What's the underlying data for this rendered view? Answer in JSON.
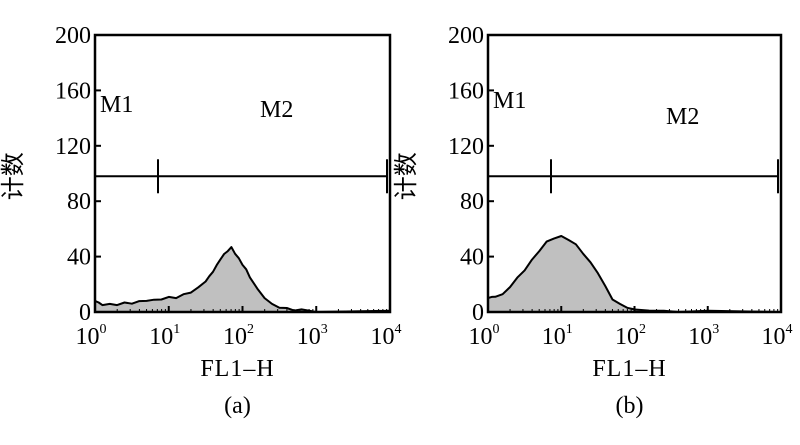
{
  "figure": {
    "panels": [
      {
        "caption": "(a)",
        "xlabel": "FL1–H",
        "ylabel": "计数",
        "markers": [
          {
            "label": "M1",
            "range": [
              0,
              0
            ]
          },
          {
            "label": "M2",
            "range": [
              0.9,
              4
            ]
          }
        ]
      },
      {
        "caption": "(b)",
        "xlabel": "FL1–H",
        "ylabel": "计数",
        "markers": [
          {
            "label": "M1",
            "range": [
              0,
              0
            ]
          },
          {
            "label": "M2",
            "range": [
              0.87,
              4
            ]
          }
        ]
      }
    ]
  },
  "chart_data": [
    {
      "type": "area",
      "title": "",
      "caption": "(a)",
      "xlabel": "FL1–H",
      "ylabel": "计数",
      "xscale": "log",
      "xlim": [
        1,
        10000
      ],
      "ylim": [
        0,
        200
      ],
      "yticks": [
        0,
        40,
        80,
        120,
        160,
        200
      ],
      "xticks": [
        {
          "base": "10",
          "exp": "0"
        },
        {
          "base": "10",
          "exp": "1"
        },
        {
          "base": "10",
          "exp": "2"
        },
        {
          "base": "10",
          "exp": "3"
        },
        {
          "base": "10",
          "exp": "4"
        }
      ],
      "marker_level": 98,
      "fill": "#c0c0c0",
      "x_log10": [
        0,
        0.05,
        0.1,
        0.2,
        0.3,
        0.4,
        0.5,
        0.6,
        0.7,
        0.8,
        0.9,
        1.0,
        1.1,
        1.2,
        1.3,
        1.4,
        1.5,
        1.55,
        1.6,
        1.65,
        1.7,
        1.75,
        1.8,
        1.85,
        1.9,
        1.95,
        2.0,
        2.05,
        2.1,
        2.2,
        2.3,
        2.4,
        2.5,
        2.6,
        2.7,
        2.8,
        3.0,
        4.0
      ],
      "counts": [
        8,
        6,
        5,
        5,
        5,
        6,
        6,
        7,
        8,
        8,
        9,
        10,
        10,
        12,
        14,
        17,
        22,
        25,
        29,
        33,
        38,
        41,
        44,
        46,
        42,
        38,
        34,
        30,
        25,
        16,
        10,
        5,
        3,
        2,
        1,
        1,
        0,
        0
      ]
    },
    {
      "type": "area",
      "title": "",
      "caption": "(b)",
      "xlabel": "FL1–H",
      "ylabel": "计数",
      "xscale": "log",
      "xlim": [
        1,
        10000
      ],
      "ylim": [
        0,
        200
      ],
      "yticks": [
        0,
        40,
        80,
        120,
        160,
        200
      ],
      "xticks": [
        {
          "base": "10",
          "exp": "0"
        },
        {
          "base": "10",
          "exp": "1"
        },
        {
          "base": "10",
          "exp": "2"
        },
        {
          "base": "10",
          "exp": "3"
        },
        {
          "base": "10",
          "exp": "4"
        }
      ],
      "marker_level": 98,
      "fill": "#c0c0c0",
      "x_log10": [
        0,
        0.05,
        0.1,
        0.2,
        0.3,
        0.4,
        0.5,
        0.6,
        0.7,
        0.8,
        0.9,
        1.0,
        1.1,
        1.2,
        1.3,
        1.4,
        1.5,
        1.6,
        1.7,
        1.8,
        1.9,
        2.0,
        2.2,
        2.4,
        2.6,
        3.0,
        4.0
      ],
      "counts": [
        10,
        10,
        11,
        12,
        18,
        24,
        30,
        37,
        44,
        50,
        53,
        54,
        52,
        48,
        42,
        35,
        28,
        18,
        9,
        5,
        3,
        1,
        1,
        0,
        0,
        0,
        0
      ]
    }
  ]
}
